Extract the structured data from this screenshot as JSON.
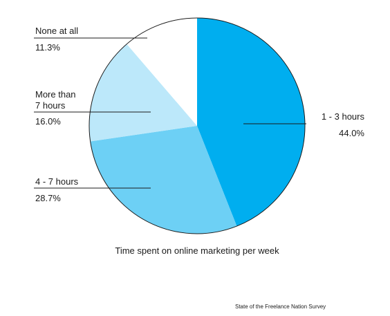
{
  "chart_data": {
    "type": "pie",
    "title": "Time spent on online marketing per week",
    "source": "State of the Freelance Nation Survey",
    "slices": [
      {
        "label_lines": [
          "1 - 3 hours"
        ],
        "value": 44.0,
        "value_text": "44.0%",
        "color": "#00aeef",
        "label_side": "right"
      },
      {
        "label_lines": [
          "4 - 7 hours"
        ],
        "value": 28.7,
        "value_text": "28.7%",
        "color": "#6dd0f5",
        "label_side": "left"
      },
      {
        "label_lines": [
          "More than",
          "7 hours"
        ],
        "value": 16.0,
        "value_text": "16.0%",
        "color": "#bce8fa",
        "label_side": "left"
      },
      {
        "label_lines": [
          "None at all"
        ],
        "value": 11.3,
        "value_text": "11.3%",
        "color": "#ffffff",
        "label_side": "left"
      }
    ],
    "start": "top",
    "direction": "clockwise",
    "outline_color": "#1a1a1a"
  }
}
